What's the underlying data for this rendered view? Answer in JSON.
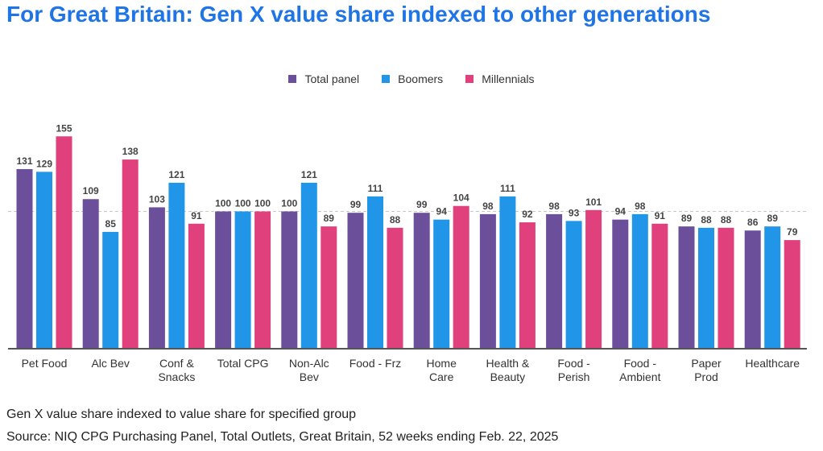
{
  "title": "For Great Britain: Gen X value share indexed to other generations",
  "footnote": "Gen X value share indexed to value share for specified group",
  "source": "Source: NIQ CPG Purchasing Panel, Total Outlets, Great Britain, 52 weeks ending Feb. 22, 2025",
  "chart_data": {
    "type": "bar",
    "categories": [
      [
        "Pet Food"
      ],
      [
        "Alc Bev"
      ],
      [
        "Conf &",
        "Snacks"
      ],
      [
        "Total CPG"
      ],
      [
        "Non-Alc",
        "Bev"
      ],
      [
        "Food - Frz"
      ],
      [
        "Home",
        "Care"
      ],
      [
        "Health &",
        "Beauty"
      ],
      [
        "Food -",
        "Perish"
      ],
      [
        "Food -",
        "Ambient"
      ],
      [
        "Paper",
        "Prod"
      ],
      [
        "Healthcare"
      ]
    ],
    "series": [
      {
        "name": "Total panel",
        "color": "#6b4f9b",
        "values": [
          131,
          109,
          103,
          100,
          100,
          99,
          99,
          98,
          98,
          94,
          89,
          86
        ]
      },
      {
        "name": "Boomers",
        "color": "#2196e8",
        "values": [
          129,
          85,
          121,
          100,
          121,
          111,
          94,
          111,
          93,
          98,
          88,
          89
        ]
      },
      {
        "name": "Millennials",
        "color": "#e0407c",
        "values": [
          155,
          138,
          91,
          100,
          89,
          88,
          104,
          92,
          101,
          91,
          88,
          79
        ]
      }
    ],
    "ylim": [
      0,
      160
    ],
    "reference_line": 100,
    "legend_position": "top-center",
    "grid": false,
    "data_labels": true
  }
}
